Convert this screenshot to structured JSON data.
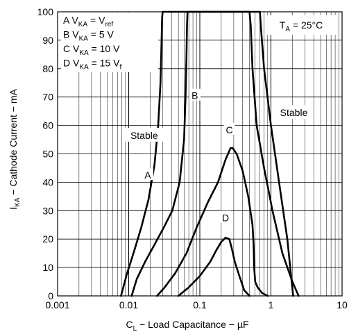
{
  "chart_data": {
    "type": "line",
    "x_scale": "log",
    "xlim": [
      0.001,
      10
    ],
    "ylim": [
      0,
      100
    ],
    "grid": true,
    "xlabel": {
      "prefix": "C",
      "sub": "L",
      "rest": " − Load Capacitance − µF"
    },
    "ylabel": {
      "prefix": "I",
      "sub": "KA",
      "rest": " − Cathode Current − mA"
    },
    "x_ticks": [
      {
        "value": 0.001,
        "label": "0.001"
      },
      {
        "value": 0.01,
        "label": "0.01"
      },
      {
        "value": 0.1,
        "label": "0.1"
      },
      {
        "value": 1,
        "label": "1"
      },
      {
        "value": 10,
        "label": "10"
      }
    ],
    "y_ticks": [
      {
        "value": 0,
        "label": "0"
      },
      {
        "value": 10,
        "label": "10"
      },
      {
        "value": 20,
        "label": "20"
      },
      {
        "value": 30,
        "label": "30"
      },
      {
        "value": 40,
        "label": "40"
      },
      {
        "value": 50,
        "label": "50"
      },
      {
        "value": 60,
        "label": "60"
      },
      {
        "value": 70,
        "label": "70"
      },
      {
        "value": 80,
        "label": "80"
      },
      {
        "value": 90,
        "label": "90"
      },
      {
        "value": 100,
        "label": "100"
      }
    ],
    "legend": [
      {
        "letter": "A",
        "sub": "KA",
        "eq": " = V",
        "vsub": "ref"
      },
      {
        "letter": "B",
        "sub": "KA",
        "eq": " = 5 V",
        "vsub": ""
      },
      {
        "letter": "C",
        "sub": "KA",
        "eq": " = 10 V",
        "vsub": ""
      },
      {
        "letter": "D",
        "sub": "KA",
        "eq": " = 15 V",
        "vsub": "f"
      }
    ],
    "condition": {
      "prefix": "T",
      "sub": "A",
      "rest": " = 25°C"
    },
    "region_labels": [
      {
        "text": "Stable",
        "x": 0.0165,
        "y": 56
      },
      {
        "text": "Stable",
        "x": 2.1,
        "y": 64
      }
    ],
    "curve_labels": [
      {
        "text": "A",
        "x": 0.0185,
        "y": 42
      },
      {
        "text": "B",
        "x": 0.085,
        "y": 70
      },
      {
        "text": "C",
        "x": 0.26,
        "y": 58
      },
      {
        "text": "D",
        "x": 0.23,
        "y": 27
      }
    ],
    "series": [
      {
        "name": "A",
        "x": [
          0.0078,
          0.0095,
          0.012,
          0.015,
          0.019,
          0.023,
          0.026,
          0.028,
          0.029,
          0.0295,
          0.03,
          0.7,
          0.72,
          0.8,
          1.0,
          1.3,
          1.7,
          2.05
        ],
        "y": [
          0,
          8,
          16,
          24,
          34,
          46,
          60,
          75,
          90,
          98,
          100,
          100,
          95,
          80,
          60,
          40,
          20,
          0
        ]
      },
      {
        "name": "B",
        "x": [
          0.011,
          0.013,
          0.017,
          0.023,
          0.031,
          0.041,
          0.052,
          0.06,
          0.063,
          0.065,
          0.066,
          0.067,
          0.5,
          0.52,
          0.55,
          0.63,
          0.8,
          1.05,
          1.45,
          2.0,
          2.45
        ],
        "y": [
          0,
          6,
          12,
          18,
          24,
          30,
          40,
          55,
          70,
          85,
          95,
          100,
          100,
          95,
          80,
          60,
          45,
          30,
          15,
          5,
          0
        ]
      },
      {
        "name": "C",
        "x": [
          0.025,
          0.032,
          0.045,
          0.065,
          0.09,
          0.13,
          0.18,
          0.23,
          0.27,
          0.29,
          0.33,
          0.4,
          0.48,
          0.55,
          0.57,
          0.58,
          0.6,
          0.65,
          0.75,
          0.9
        ],
        "y": [
          0,
          3,
          8,
          15,
          24,
          33,
          40,
          48,
          52,
          52,
          50,
          44,
          35,
          25,
          18,
          10,
          5,
          3,
          1,
          0
        ]
      },
      {
        "name": "D",
        "x": [
          0.05,
          0.07,
          0.1,
          0.14,
          0.17,
          0.2,
          0.23,
          0.26,
          0.28,
          0.31,
          0.36,
          0.42,
          0.5
        ],
        "y": [
          0,
          3,
          7,
          12,
          16,
          19,
          20.5,
          20,
          17,
          12,
          7,
          2,
          0
        ]
      }
    ]
  }
}
